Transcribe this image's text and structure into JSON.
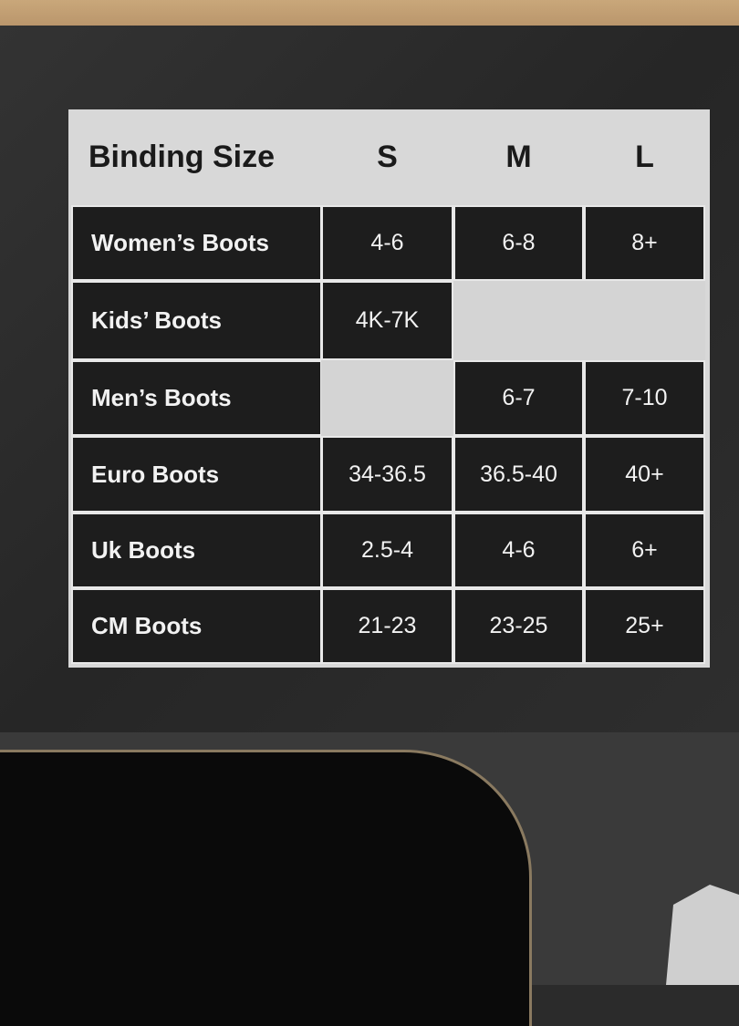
{
  "table": {
    "header": [
      "Binding Size",
      "S",
      "M",
      "L"
    ],
    "rows": [
      {
        "label": "Women’s Boots",
        "S": "4-6",
        "M": "6-8",
        "L": "8+"
      },
      {
        "label": "Kids’ Boots",
        "S": "4K-7K",
        "M": "",
        "L": ""
      },
      {
        "label": "Men’s Boots",
        "S": "",
        "M": "6-7",
        "L": "7-10"
      },
      {
        "label": "Euro Boots",
        "S": "34-36.5",
        "M": "36.5-40",
        "L": "40+"
      },
      {
        "label": "Uk Boots",
        "S": "2.5-4",
        "M": "4-6",
        "L": "6+"
      },
      {
        "label": "CM Boots",
        "S": "21-23",
        "M": "23-25",
        "L": "25+"
      }
    ]
  }
}
